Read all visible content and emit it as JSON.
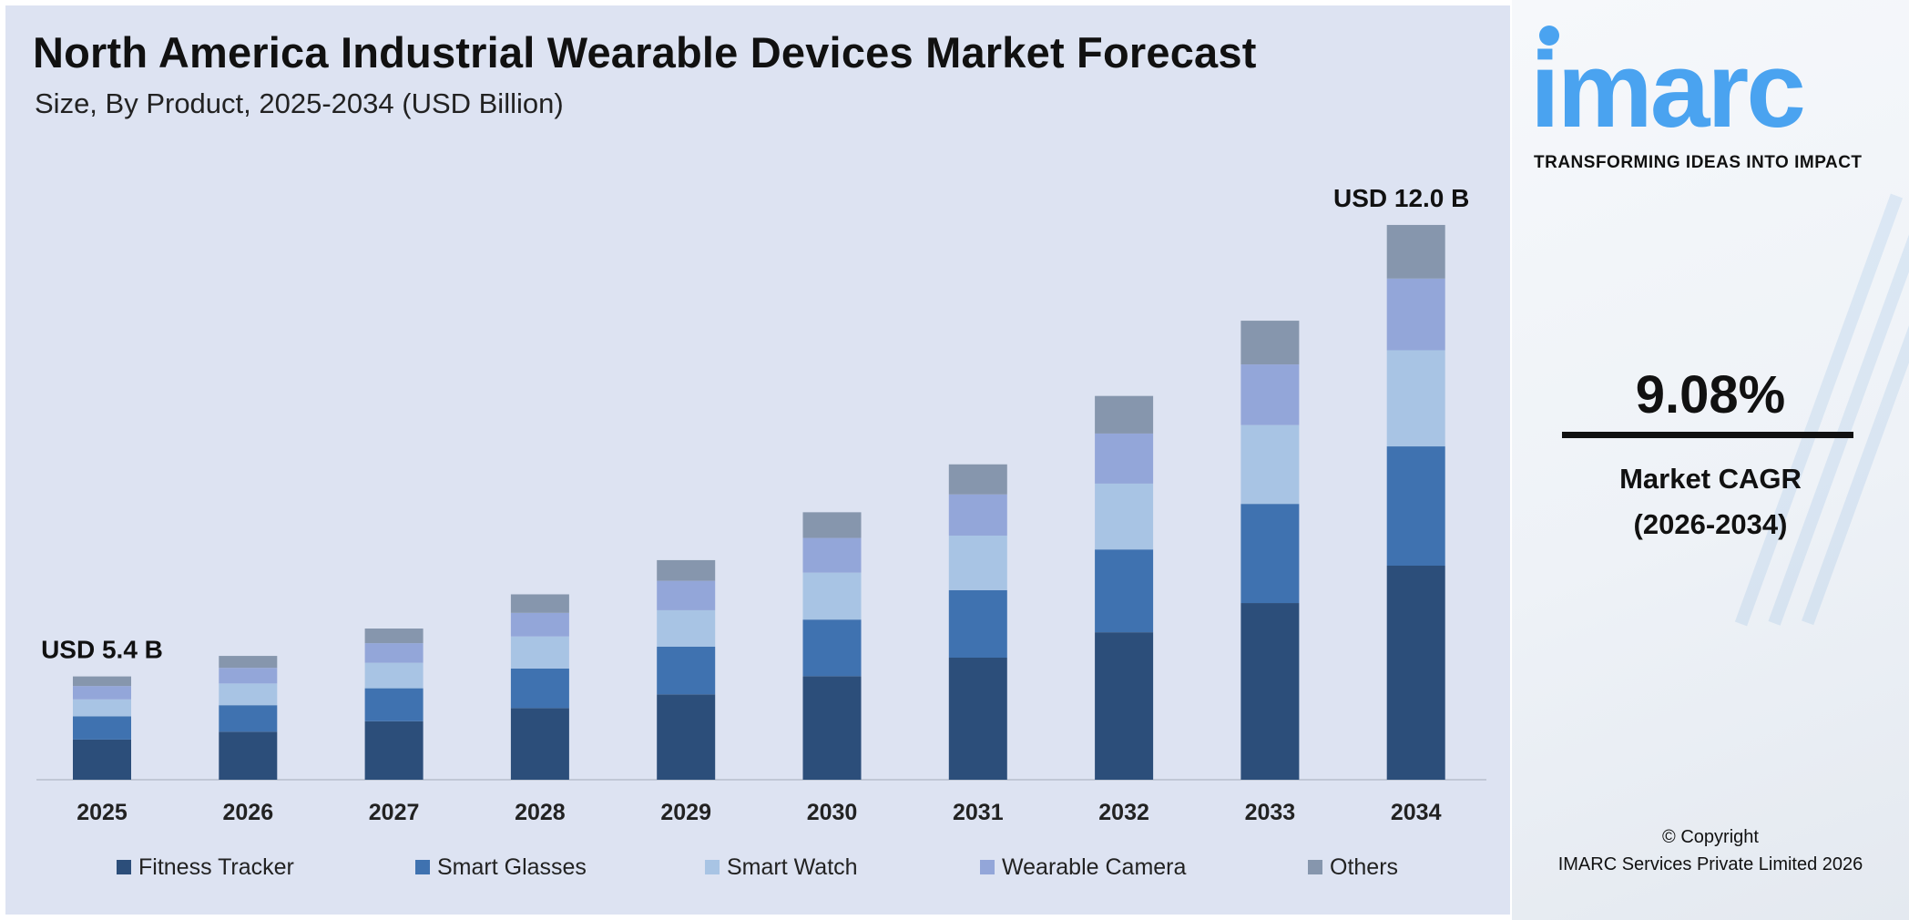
{
  "title": "North America Industrial Wearable Devices Market Forecast",
  "subtitle": "Size, By Product, 2025-2034 (USD Billion)",
  "brand": {
    "logo_text": "imarc",
    "tagline": "TRANSFORMING IDEAS INTO IMPACT",
    "color": "#4aa3f0"
  },
  "cagr": {
    "value": "9.08%",
    "label": "Market CAGR",
    "period": "(2026-2034)"
  },
  "copyright": {
    "line1": "© Copyright",
    "line2": "IMARC Services Private Limited 2026"
  },
  "chart_data": {
    "type": "bar",
    "stacked": true,
    "title": "North America Industrial Wearable Devices Market Forecast",
    "subtitle": "Size, By Product, 2025-2034 (USD Billion)",
    "categories": [
      "2025",
      "2026",
      "2027",
      "2028",
      "2029",
      "2030",
      "2031",
      "2032",
      "2033",
      "2034"
    ],
    "series": [
      {
        "name": "Fitness Tracker",
        "color": "#2c4e7a",
        "values": [
          2.1,
          2.21,
          2.36,
          2.55,
          2.76,
          3.02,
          3.29,
          3.65,
          4.08,
          4.63
        ]
      },
      {
        "name": "Smart Glasses",
        "color": "#3f72b0",
        "values": [
          1.21,
          1.22,
          1.33,
          1.41,
          1.54,
          1.65,
          1.82,
          2.05,
          2.29,
          2.58
        ]
      },
      {
        "name": "Smart Watch",
        "color": "#a8c4e4",
        "values": [
          0.89,
          1.0,
          1.03,
          1.14,
          1.18,
          1.37,
          1.47,
          1.63,
          1.82,
          2.08
        ]
      },
      {
        "name": "Wearable Camera",
        "color": "#93a6d9",
        "values": [
          0.7,
          0.72,
          0.79,
          0.84,
          0.95,
          1.01,
          1.11,
          1.24,
          1.4,
          1.55
        ]
      },
      {
        "name": "Others",
        "color": "#8696ad",
        "values": [
          0.5,
          0.55,
          0.59,
          0.66,
          0.67,
          0.75,
          0.81,
          0.93,
          1.01,
          1.16
        ]
      }
    ],
    "annotations": [
      {
        "category": "2025",
        "text": "USD 5.4 B"
      },
      {
        "category": "2034",
        "text": "USD 12.0 B"
      }
    ],
    "legend": "bottom",
    "grid": false,
    "y_axis_visible": false
  }
}
